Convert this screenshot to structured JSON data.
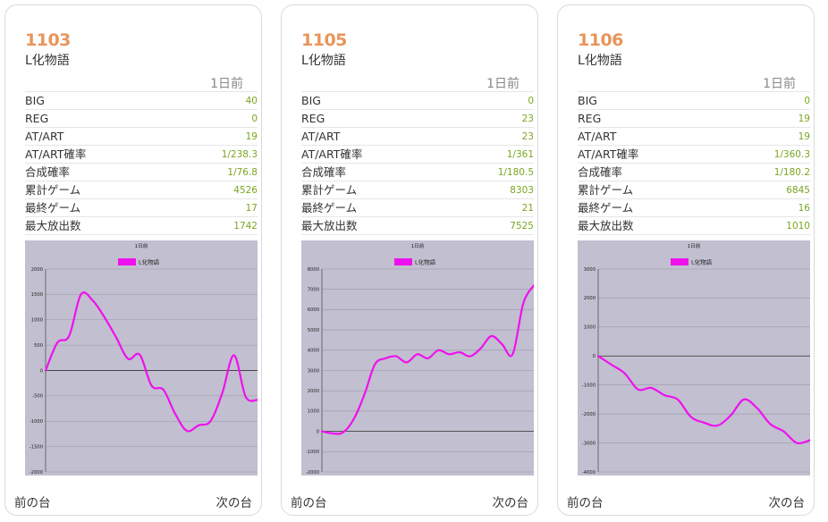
{
  "colors": {
    "number": "#e8955a",
    "value": "#7aa620",
    "series": "#ee11ee",
    "plot_bg": "#c2bfd0"
  },
  "cards": [
    {
      "number": "1103",
      "model": "L化物語",
      "day": "1日前",
      "rows": [
        {
          "label": "BIG",
          "value": "40"
        },
        {
          "label": "REG",
          "value": "0"
        },
        {
          "label": "AT/ART",
          "value": "19"
        },
        {
          "label": "AT/ART確率",
          "value": "1/238.3"
        },
        {
          "label": "合成確率",
          "value": "1/76.8"
        },
        {
          "label": "累計ゲーム",
          "value": "4526"
        },
        {
          "label": "最終ゲーム",
          "value": "17"
        },
        {
          "label": "最大放出数",
          "value": "1742"
        }
      ],
      "chart_data": {
        "type": "line",
        "title": "1日前",
        "legend_position": "top",
        "grid": true,
        "ylim": [
          -2000,
          2000
        ],
        "yticks": [
          2000,
          1500,
          1000,
          500,
          0,
          -500,
          -1000,
          -1500,
          -2000
        ],
        "series": [
          {
            "name": "L化物語",
            "values": [
              0,
              550,
              680,
              1500,
              1380,
              1050,
              650,
              230,
              310,
              -300,
              -380,
              -850,
              -1190,
              -1080,
              -1000,
              -450,
              300,
              -520,
              -580
            ]
          }
        ]
      },
      "nav": {
        "prev": "前の台",
        "next": "次の台"
      }
    },
    {
      "number": "1105",
      "model": "L化物語",
      "day": "1日前",
      "rows": [
        {
          "label": "BIG",
          "value": "0"
        },
        {
          "label": "REG",
          "value": "23"
        },
        {
          "label": "AT/ART",
          "value": "23"
        },
        {
          "label": "AT/ART確率",
          "value": "1/361"
        },
        {
          "label": "合成確率",
          "value": "1/180.5"
        },
        {
          "label": "累計ゲーム",
          "value": "8303"
        },
        {
          "label": "最終ゲーム",
          "value": "21"
        },
        {
          "label": "最大放出数",
          "value": "7525"
        }
      ],
      "chart_data": {
        "type": "line",
        "title": "1日前",
        "legend_position": "top",
        "grid": true,
        "ylim": [
          -2000,
          8000
        ],
        "yticks": [
          8000,
          7000,
          6000,
          5000,
          4000,
          3000,
          2000,
          1000,
          0,
          -1000,
          -2000
        ],
        "series": [
          {
            "name": "L化物語",
            "values": [
              0,
              -100,
              -50,
              600,
              1800,
              3300,
              3600,
              3700,
              3400,
              3800,
              3600,
              4000,
              3800,
              3900,
              3700,
              4100,
              4700,
              4300,
              3800,
              6300,
              7200
            ]
          }
        ]
      },
      "nav": {
        "prev": "前の台",
        "next": "次の台"
      }
    },
    {
      "number": "1106",
      "model": "L化物語",
      "day": "1日前",
      "rows": [
        {
          "label": "BIG",
          "value": "0"
        },
        {
          "label": "REG",
          "value": "19"
        },
        {
          "label": "AT/ART",
          "value": "19"
        },
        {
          "label": "AT/ART確率",
          "value": "1/360.3"
        },
        {
          "label": "合成確率",
          "value": "1/180.2"
        },
        {
          "label": "累計ゲーム",
          "value": "6845"
        },
        {
          "label": "最終ゲーム",
          "value": "16"
        },
        {
          "label": "最大放出数",
          "value": "1010"
        }
      ],
      "chart_data": {
        "type": "line",
        "title": "1日前",
        "legend_position": "top",
        "grid": true,
        "ylim": [
          -4000,
          3000
        ],
        "yticks": [
          3000,
          2000,
          1000,
          0,
          -1000,
          -2000,
          -3000,
          -4000
        ],
        "series": [
          {
            "name": "L化物語",
            "values": [
              0,
              -300,
              -600,
              -1150,
              -1100,
              -1350,
              -1500,
              -2100,
              -2300,
              -2400,
              -2050,
              -1500,
              -1800,
              -2350,
              -2600,
              -3000,
              -2900
            ]
          }
        ]
      },
      "nav": {
        "prev": "前の台",
        "next": "次の台"
      }
    }
  ]
}
